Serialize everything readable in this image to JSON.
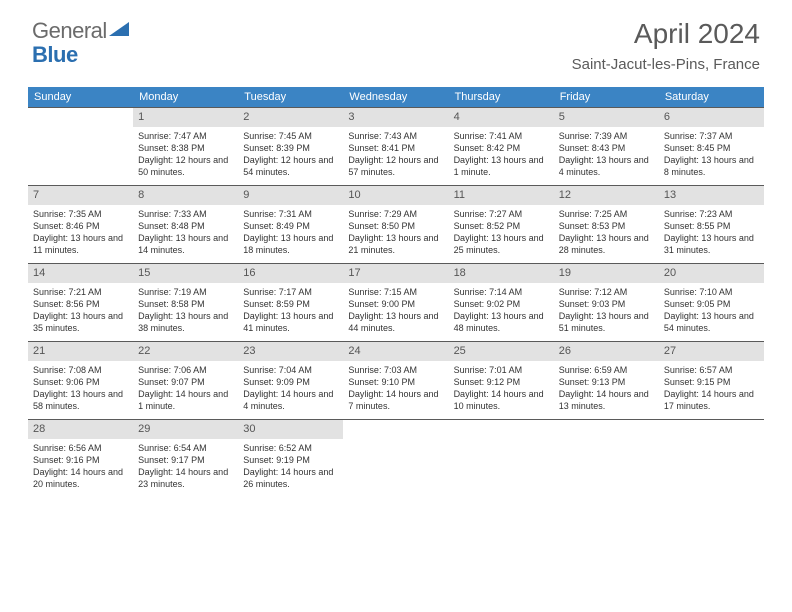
{
  "logo": {
    "part1": "General",
    "part2": "Blue"
  },
  "title": "April 2024",
  "location": "Saint-Jacut-les-Pins, France",
  "columns": [
    "Sunday",
    "Monday",
    "Tuesday",
    "Wednesday",
    "Thursday",
    "Friday",
    "Saturday"
  ],
  "colors": {
    "header_bg": "#3b84c4",
    "header_text": "#ffffff",
    "daynum_bg": "#e2e2e2",
    "daynum_text": "#555555",
    "body_text": "#333333",
    "title_text": "#5a5a5a",
    "logo_gray": "#6b6b6b",
    "logo_blue": "#2b6fb0",
    "rule": "#5a5a5a"
  },
  "first_day_column": 1,
  "days": [
    {
      "n": 1,
      "sunrise": "7:47 AM",
      "sunset": "8:38 PM",
      "daylight": "12 hours and 50 minutes."
    },
    {
      "n": 2,
      "sunrise": "7:45 AM",
      "sunset": "8:39 PM",
      "daylight": "12 hours and 54 minutes."
    },
    {
      "n": 3,
      "sunrise": "7:43 AM",
      "sunset": "8:41 PM",
      "daylight": "12 hours and 57 minutes."
    },
    {
      "n": 4,
      "sunrise": "7:41 AM",
      "sunset": "8:42 PM",
      "daylight": "13 hours and 1 minute."
    },
    {
      "n": 5,
      "sunrise": "7:39 AM",
      "sunset": "8:43 PM",
      "daylight": "13 hours and 4 minutes."
    },
    {
      "n": 6,
      "sunrise": "7:37 AM",
      "sunset": "8:45 PM",
      "daylight": "13 hours and 8 minutes."
    },
    {
      "n": 7,
      "sunrise": "7:35 AM",
      "sunset": "8:46 PM",
      "daylight": "13 hours and 11 minutes."
    },
    {
      "n": 8,
      "sunrise": "7:33 AM",
      "sunset": "8:48 PM",
      "daylight": "13 hours and 14 minutes."
    },
    {
      "n": 9,
      "sunrise": "7:31 AM",
      "sunset": "8:49 PM",
      "daylight": "13 hours and 18 minutes."
    },
    {
      "n": 10,
      "sunrise": "7:29 AM",
      "sunset": "8:50 PM",
      "daylight": "13 hours and 21 minutes."
    },
    {
      "n": 11,
      "sunrise": "7:27 AM",
      "sunset": "8:52 PM",
      "daylight": "13 hours and 25 minutes."
    },
    {
      "n": 12,
      "sunrise": "7:25 AM",
      "sunset": "8:53 PM",
      "daylight": "13 hours and 28 minutes."
    },
    {
      "n": 13,
      "sunrise": "7:23 AM",
      "sunset": "8:55 PM",
      "daylight": "13 hours and 31 minutes."
    },
    {
      "n": 14,
      "sunrise": "7:21 AM",
      "sunset": "8:56 PM",
      "daylight": "13 hours and 35 minutes."
    },
    {
      "n": 15,
      "sunrise": "7:19 AM",
      "sunset": "8:58 PM",
      "daylight": "13 hours and 38 minutes."
    },
    {
      "n": 16,
      "sunrise": "7:17 AM",
      "sunset": "8:59 PM",
      "daylight": "13 hours and 41 minutes."
    },
    {
      "n": 17,
      "sunrise": "7:15 AM",
      "sunset": "9:00 PM",
      "daylight": "13 hours and 44 minutes."
    },
    {
      "n": 18,
      "sunrise": "7:14 AM",
      "sunset": "9:02 PM",
      "daylight": "13 hours and 48 minutes."
    },
    {
      "n": 19,
      "sunrise": "7:12 AM",
      "sunset": "9:03 PM",
      "daylight": "13 hours and 51 minutes."
    },
    {
      "n": 20,
      "sunrise": "7:10 AM",
      "sunset": "9:05 PM",
      "daylight": "13 hours and 54 minutes."
    },
    {
      "n": 21,
      "sunrise": "7:08 AM",
      "sunset": "9:06 PM",
      "daylight": "13 hours and 58 minutes."
    },
    {
      "n": 22,
      "sunrise": "7:06 AM",
      "sunset": "9:07 PM",
      "daylight": "14 hours and 1 minute."
    },
    {
      "n": 23,
      "sunrise": "7:04 AM",
      "sunset": "9:09 PM",
      "daylight": "14 hours and 4 minutes."
    },
    {
      "n": 24,
      "sunrise": "7:03 AM",
      "sunset": "9:10 PM",
      "daylight": "14 hours and 7 minutes."
    },
    {
      "n": 25,
      "sunrise": "7:01 AM",
      "sunset": "9:12 PM",
      "daylight": "14 hours and 10 minutes."
    },
    {
      "n": 26,
      "sunrise": "6:59 AM",
      "sunset": "9:13 PM",
      "daylight": "14 hours and 13 minutes."
    },
    {
      "n": 27,
      "sunrise": "6:57 AM",
      "sunset": "9:15 PM",
      "daylight": "14 hours and 17 minutes."
    },
    {
      "n": 28,
      "sunrise": "6:56 AM",
      "sunset": "9:16 PM",
      "daylight": "14 hours and 20 minutes."
    },
    {
      "n": 29,
      "sunrise": "6:54 AM",
      "sunset": "9:17 PM",
      "daylight": "14 hours and 23 minutes."
    },
    {
      "n": 30,
      "sunrise": "6:52 AM",
      "sunset": "9:19 PM",
      "daylight": "14 hours and 26 minutes."
    }
  ],
  "labels": {
    "sunrise": "Sunrise:",
    "sunset": "Sunset:",
    "daylight": "Daylight:"
  }
}
